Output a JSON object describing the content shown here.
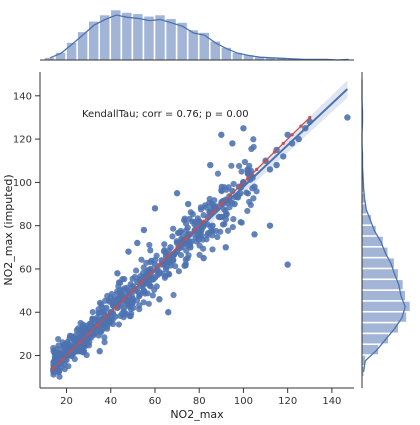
{
  "chart_data": {
    "type": "scatter",
    "title": "",
    "xlabel": "NO2_max",
    "ylabel": "NO2_max (imputed)",
    "xlim": [
      8,
      150
    ],
    "ylim": [
      5,
      151
    ],
    "xticks": [
      20,
      40,
      60,
      80,
      100,
      120,
      140
    ],
    "yticks": [
      20,
      40,
      60,
      80,
      100,
      120,
      140
    ],
    "annotation": "KendallTau; corr = 0.76; p = 0.00",
    "grid": false,
    "colors": {
      "points": "#4c72b0",
      "regression": "#4c72b0",
      "identity": "#c44e52",
      "histogram": "#a2b5d6"
    },
    "regression": {
      "slope": 0.96,
      "intercept": 2.0,
      "x_range": [
        14,
        147
      ]
    },
    "identity_line": {
      "x_range": [
        14,
        130
      ]
    },
    "scatter_sample": {
      "x": [
        15,
        18,
        20,
        22,
        22,
        24,
        25,
        26,
        28,
        28,
        30,
        30,
        32,
        33,
        34,
        35,
        36,
        37,
        38,
        38,
        40,
        40,
        41,
        42,
        43,
        44,
        45,
        45,
        46,
        47,
        48,
        48,
        50,
        50,
        51,
        52,
        53,
        54,
        55,
        55,
        56,
        57,
        58,
        58,
        60,
        60,
        61,
        62,
        63,
        64,
        65,
        65,
        66,
        67,
        68,
        70,
        70,
        72,
        72,
        74,
        75,
        76,
        78,
        80,
        80,
        82,
        84,
        85,
        86,
        88,
        90,
        90,
        92,
        95,
        96,
        98,
        100,
        102,
        105,
        110,
        112,
        115,
        118,
        120,
        122,
        125,
        128,
        130,
        147,
        60,
        70,
        55,
        90,
        100,
        115,
        120,
        105,
        95,
        62,
        75,
        48,
        35,
        85,
        92,
        112,
        66,
        82,
        43,
        52
      ],
      "y": [
        15,
        20,
        18,
        24,
        20,
        26,
        22,
        28,
        30,
        25,
        32,
        28,
        30,
        35,
        32,
        36,
        40,
        34,
        38,
        42,
        40,
        36,
        44,
        38,
        42,
        46,
        44,
        48,
        42,
        46,
        50,
        44,
        52,
        46,
        50,
        54,
        48,
        52,
        56,
        50,
        54,
        58,
        52,
        60,
        62,
        56,
        60,
        58,
        64,
        62,
        66,
        60,
        64,
        70,
        66,
        72,
        68,
        70,
        74,
        72,
        76,
        70,
        78,
        82,
        76,
        80,
        84,
        86,
        80,
        88,
        90,
        84,
        92,
        96,
        90,
        98,
        100,
        104,
        98,
        110,
        106,
        115,
        112,
        122,
        118,
        120,
        125,
        128,
        130,
        88,
        95,
        78,
        122,
        125,
        108,
        62,
        76,
        118,
        46,
        90,
        68,
        22,
        108,
        70,
        80,
        40,
        65,
        58,
        72
      ]
    },
    "top_histogram": {
      "bin_edges": [
        10,
        15,
        20,
        25,
        30,
        35,
        40,
        45,
        50,
        55,
        60,
        65,
        70,
        75,
        80,
        85,
        90,
        95,
        100,
        105,
        110,
        115,
        120,
        125,
        130,
        135,
        140,
        145,
        150
      ],
      "counts": [
        4,
        12,
        28,
        45,
        62,
        72,
        80,
        76,
        74,
        70,
        72,
        66,
        60,
        48,
        44,
        30,
        20,
        12,
        8,
        5,
        4,
        3,
        2,
        1,
        1,
        1,
        0,
        1
      ]
    },
    "right_histogram": {
      "bin_edges": [
        10,
        15,
        20,
        25,
        30,
        35,
        40,
        45,
        50,
        55,
        60,
        65,
        70,
        75,
        80,
        85,
        90,
        95,
        100,
        105,
        110,
        115,
        120,
        125,
        130,
        135,
        140,
        145,
        150
      ],
      "counts": [
        3,
        6,
        28,
        45,
        62,
        76,
        82,
        74,
        70,
        62,
        55,
        44,
        36,
        24,
        16,
        8,
        5,
        3,
        2,
        1,
        1,
        0,
        0,
        1,
        1,
        0,
        0,
        0
      ]
    }
  }
}
